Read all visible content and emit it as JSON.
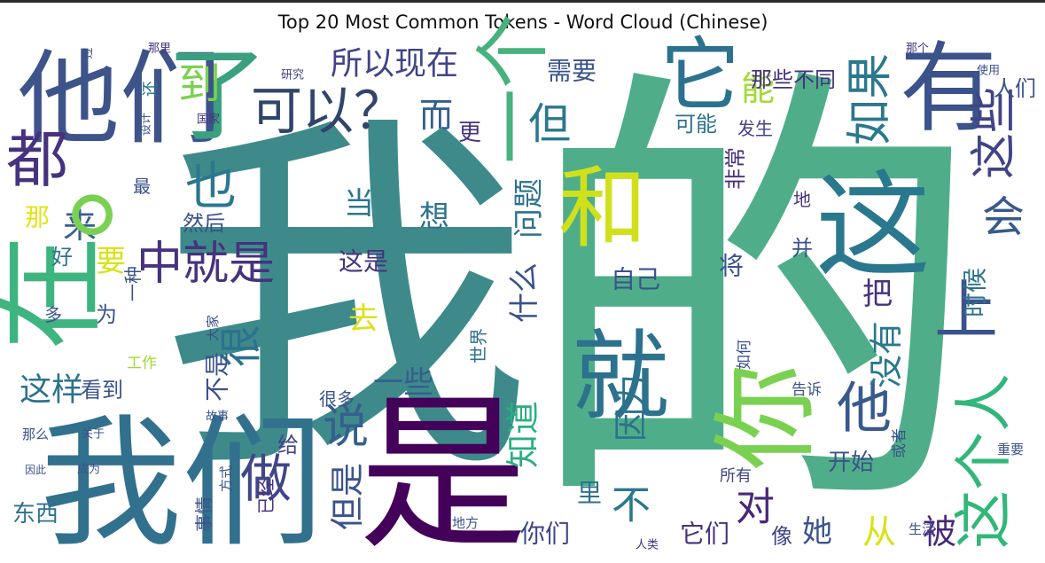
{
  "chart_data": {
    "type": "wordcloud",
    "title": "Top 20 Most Common Tokens - Word Cloud (Chinese)",
    "words": [
      "的",
      "我",
      "是",
      "我们",
      "他们",
      "了",
      "一个",
      "它",
      "有",
      "这",
      "你",
      "就",
      "和",
      "在",
      "都",
      "可以？",
      "所以现在",
      "到",
      "也",
      "中就是",
      "来",
      "这样",
      "很",
      "说",
      "做",
      "但是",
      "知道",
      "因为",
      "不",
      "对",
      "他",
      "这个人",
      "如果",
      "这些",
      "上",
      "会",
      "时候",
      "被",
      "从",
      "没有",
      "开始",
      "把",
      "她",
      "像",
      "它们",
      "你们",
      "里",
      "自己",
      "但",
      "而",
      "能",
      "需要",
      "那些不同",
      "问题",
      "什么",
      "想",
      "当",
      "去",
      "一些",
      "不是",
      "这是",
      "然后",
      "要",
      "好",
      "那",
      "看到",
      "东西",
      "事情",
      "已经",
      "给",
      "很多",
      "人们",
      "可能",
      "发生",
      "非常",
      "将",
      "并",
      "地",
      "世界",
      "告诉",
      "所有",
      "更",
      "为",
      "多",
      "工作",
      "最",
      "还",
      "设计",
      "一种",
      "大家",
      "国家",
      "研究",
      "过",
      "那里",
      "重要",
      "生活",
      "使用",
      "那个",
      "或者",
      "如何",
      "人类",
      "地方",
      "成为",
      "因此",
      "那么",
      "关于",
      "故事",
      "方式",
      "。"
    ]
  }
}
